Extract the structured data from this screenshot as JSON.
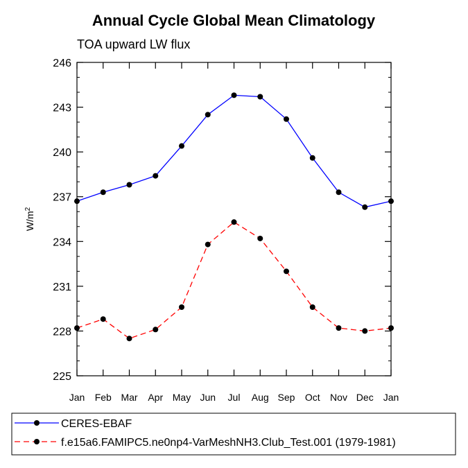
{
  "chart_data": {
    "type": "line",
    "title": "Annual Cycle Global Mean Climatology",
    "subtitle": "TOA upward LW flux",
    "ylabel": "W/m",
    "ylabel_sup": "2",
    "xlabel": "",
    "categories": [
      "Jan",
      "Feb",
      "Mar",
      "Apr",
      "May",
      "Jun",
      "Jul",
      "Aug",
      "Sep",
      "Oct",
      "Nov",
      "Dec",
      "Jan"
    ],
    "ylim": [
      225,
      246
    ],
    "yticks": [
      225,
      228,
      231,
      234,
      237,
      240,
      243,
      246
    ],
    "ytick_labels": [
      "225",
      "228",
      "231",
      "234",
      "237",
      "240",
      "243",
      "246"
    ],
    "series": [
      {
        "name": "CERES-EBAF",
        "color": "#0000ff",
        "dash": "solid",
        "values": [
          236.7,
          237.3,
          237.8,
          238.4,
          240.4,
          242.5,
          243.8,
          243.7,
          242.2,
          239.6,
          237.3,
          236.3,
          236.7
        ]
      },
      {
        "name": "f.e15a6.FAMIPC5.ne0np4-VarMeshNH3.Club_Test.001 (1979-1981)",
        "color": "#ff0000",
        "dash": "dashed",
        "values": [
          228.2,
          228.8,
          227.5,
          228.1,
          229.6,
          233.8,
          235.3,
          234.2,
          232.0,
          229.6,
          228.2,
          228.0,
          228.2
        ]
      }
    ],
    "grid": false,
    "legend_position": "bottom"
  }
}
